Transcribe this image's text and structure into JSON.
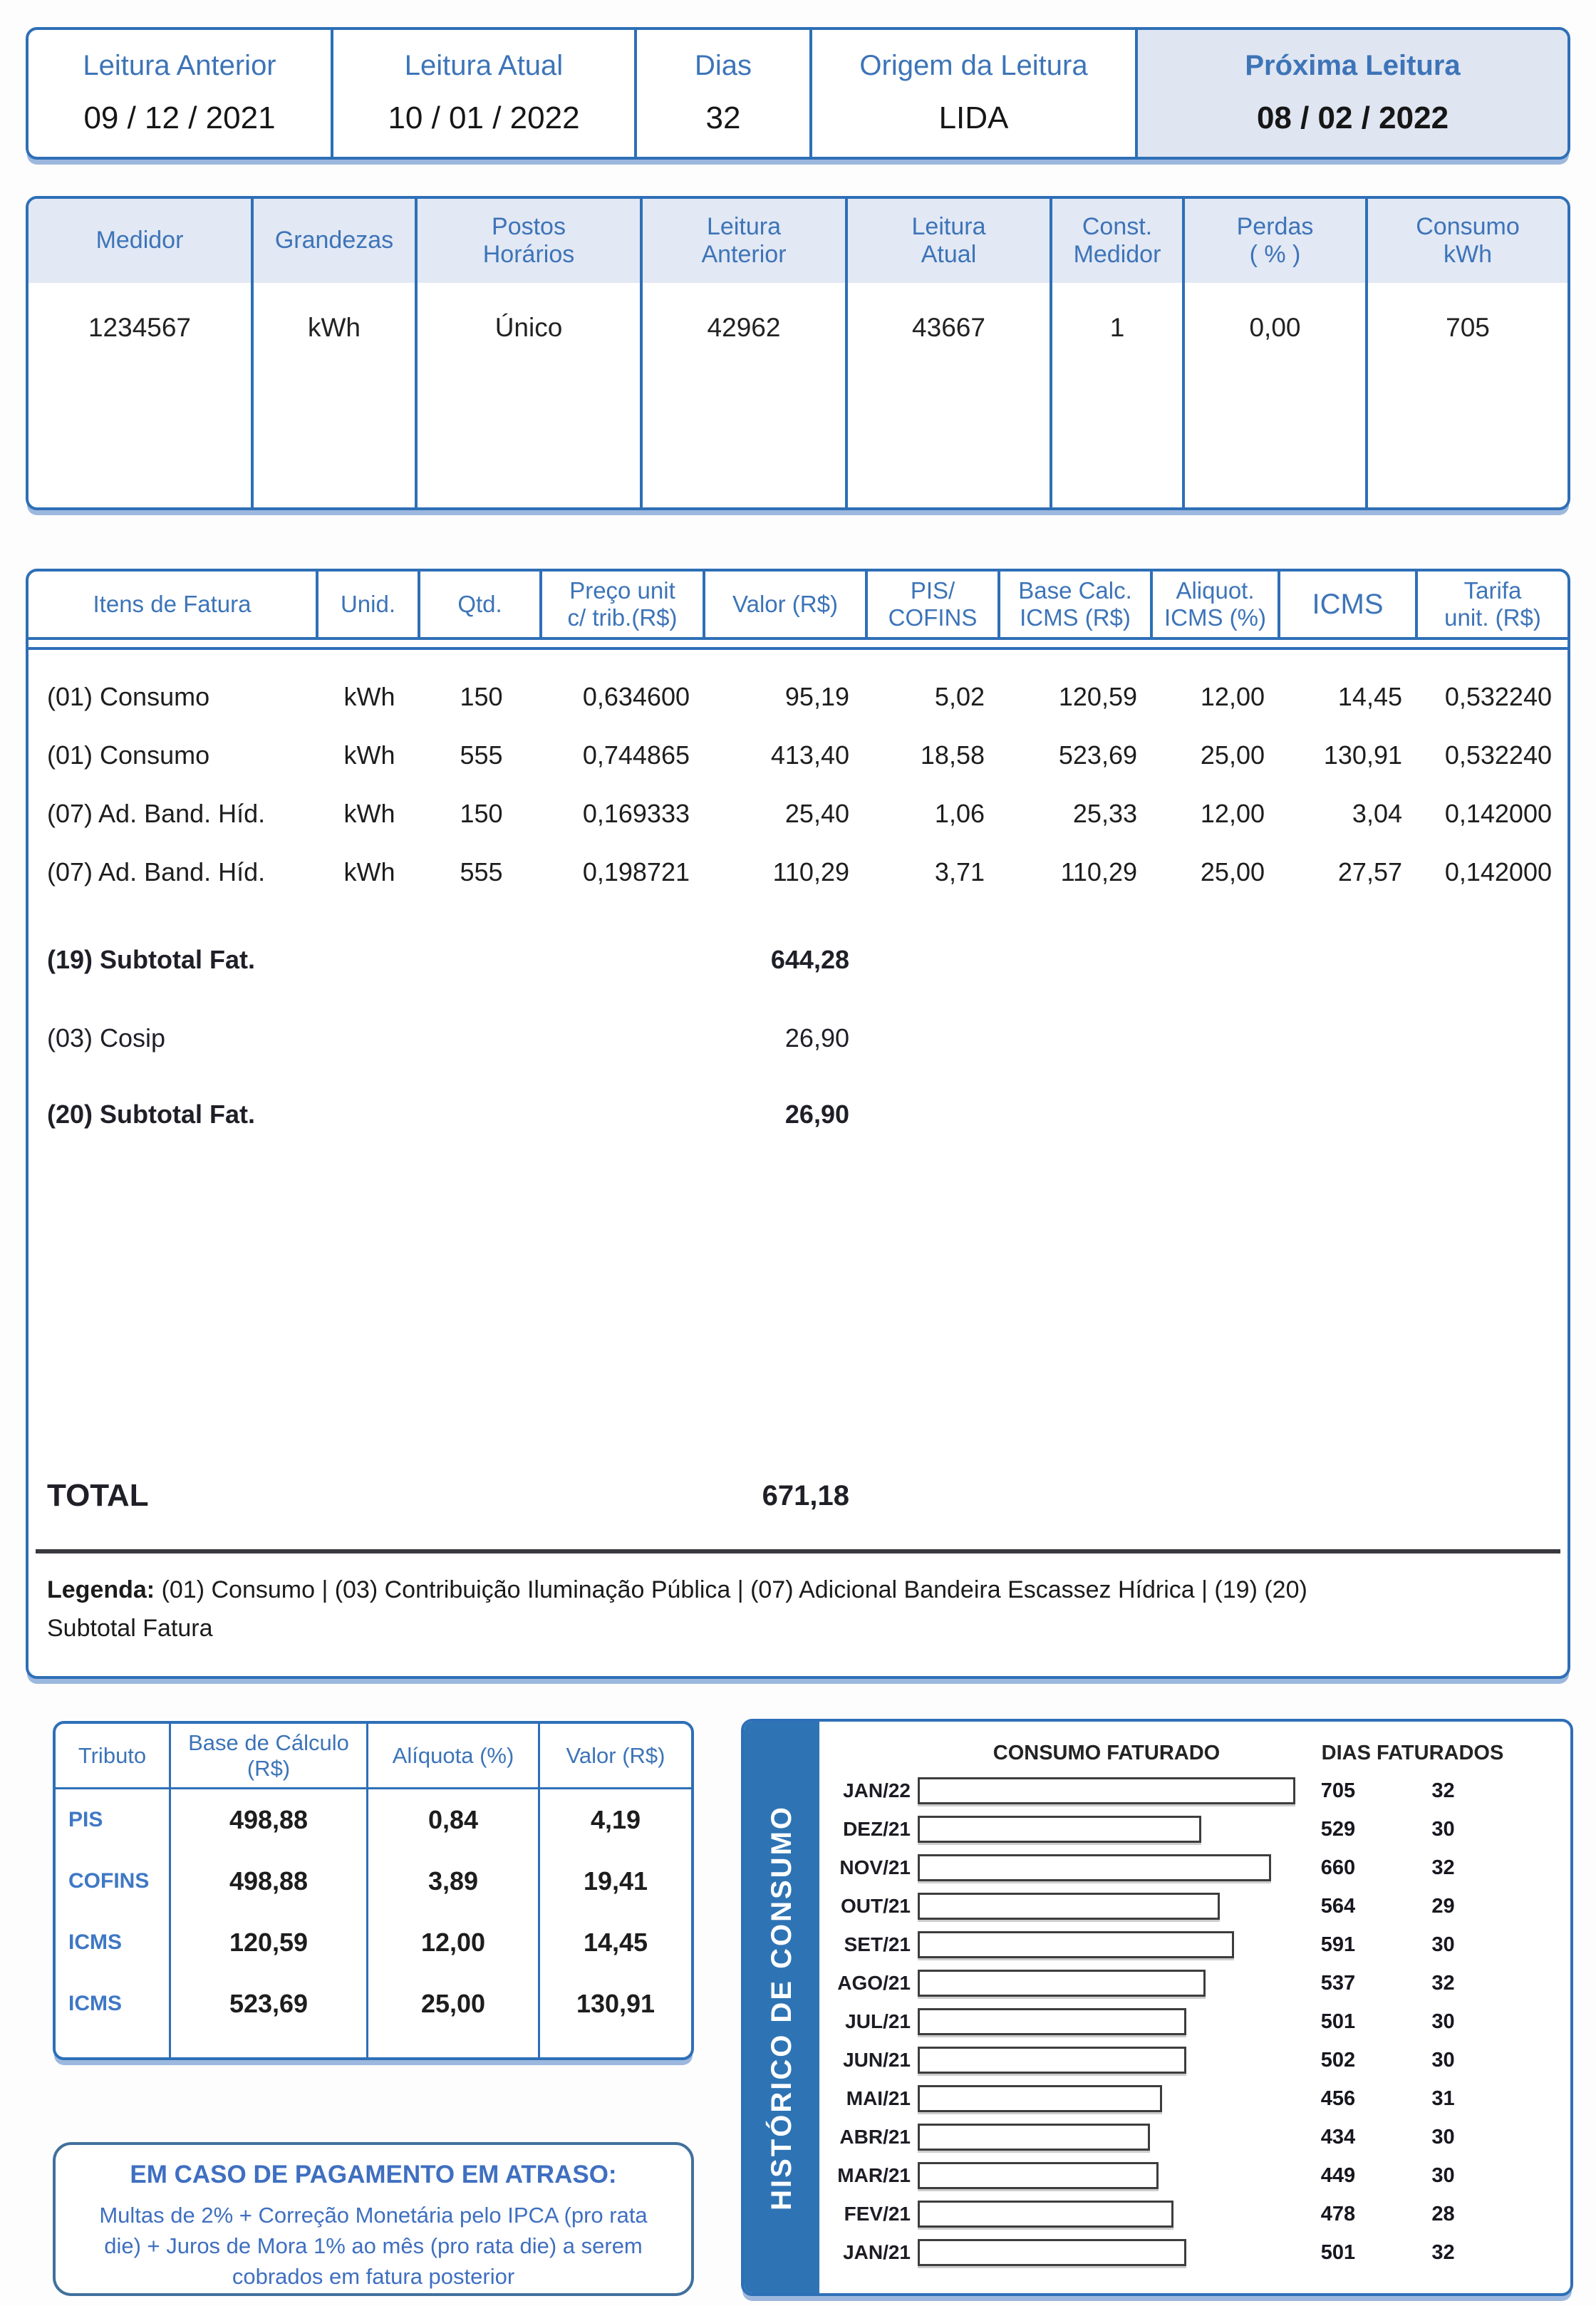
{
  "reading_summary": {
    "cells": [
      {
        "label": "Leitura Anterior",
        "value": "09 / 12 / 2021"
      },
      {
        "label": "Leitura Atual",
        "value": "10 / 01 / 2022"
      },
      {
        "label": "Dias",
        "value": "32"
      },
      {
        "label": "Origem da Leitura",
        "value": "LIDA"
      },
      {
        "label": "Próxima Leitura",
        "value": "08 / 02 / 2022"
      }
    ]
  },
  "meter_table": {
    "headers": [
      "Medidor",
      "Grandezas",
      "Postos\nHorários",
      "Leitura\nAnterior",
      "Leitura\nAtual",
      "Const.\nMedidor",
      "Perdas\n( % )",
      "Consumo\nkWh"
    ],
    "values": [
      "1234567",
      "kWh",
      "Único",
      "42962",
      "43667",
      "1",
      "0,00",
      "705"
    ]
  },
  "items_table": {
    "headers": [
      "Itens de Fatura",
      "Unid.",
      "Qtd.",
      "Preço unit\nc/ trib.(R$)",
      "Valor (R$)",
      "PIS/\nCOFINS",
      "Base Calc.\nICMS (R$)",
      "Aliquot.\nICMS (%)",
      "ICMS",
      "Tarifa\nunit. (R$)"
    ],
    "rows": [
      [
        "(01) Consumo",
        "kWh",
        "150",
        "0,634600",
        "95,19",
        "5,02",
        "120,59",
        "12,00",
        "14,45",
        "0,532240"
      ],
      [
        "(01) Consumo",
        "kWh",
        "555",
        "0,744865",
        "413,40",
        "18,58",
        "523,69",
        "25,00",
        "130,91",
        "0,532240"
      ],
      [
        "(07) Ad. Band. Híd.",
        "kWh",
        "150",
        "0,169333",
        "25,40",
        "1,06",
        "25,33",
        "12,00",
        "3,04",
        "0,142000"
      ],
      [
        "(07) Ad. Band. Híd.",
        "kWh",
        "555",
        "0,198721",
        "110,29",
        "3,71",
        "110,29",
        "25,00",
        "27,57",
        "0,142000"
      ]
    ],
    "summary_rows": [
      {
        "label": "(19) Subtotal Fat.",
        "value": "644,28"
      },
      {
        "label": "(03) Cosip",
        "value": "26,90"
      },
      {
        "label": "(20) Subtotal Fat.",
        "value": "26,90"
      }
    ],
    "total": {
      "label": "TOTAL",
      "value": "671,18"
    },
    "legend": {
      "prefix": "Legenda:",
      "text": " (01) Consumo | (03) Contribuição Iluminação Pública | (07) Adicional Bandeira Escassez Hídrica | (19) (20) Subtotal Fatura"
    }
  },
  "tax_table": {
    "headers": [
      "Tributo",
      "Base de Cálculo (R$)",
      "Alíquota (%)",
      "Valor (R$)"
    ],
    "rows": [
      {
        "name": "PIS",
        "base": "498,88",
        "rate": "0,84",
        "value": "4,19"
      },
      {
        "name": "COFINS",
        "base": "498,88",
        "rate": "3,89",
        "value": "19,41"
      },
      {
        "name": "ICMS",
        "base": "120,59",
        "rate": "12,00",
        "value": "14,45"
      },
      {
        "name": "ICMS",
        "base": "523,69",
        "rate": "25,00",
        "value": "130,91"
      }
    ]
  },
  "late_payment": {
    "title": "EM CASO DE PAGAMENTO EM ATRASO:",
    "body": "Multas de 2% + Correção Monetária pelo IPCA (pro rata die) + Juros de Mora 1% ao mês (pro rata die) a serem cobrados em fatura posterior"
  },
  "chart_data": {
    "type": "bar",
    "orientation": "horizontal",
    "sidebar_title": "HISTÓRICO DE CONSUMO",
    "col_title_consumption": "CONSUMO FATURADO",
    "col_title_days": "DIAS FATURADOS",
    "categories": [
      "JAN/22",
      "DEZ/21",
      "NOV/21",
      "OUT/21",
      "SET/21",
      "AGO/21",
      "JUL/21",
      "JUN/21",
      "MAI/21",
      "ABR/21",
      "MAR/21",
      "FEV/21",
      "JAN/21"
    ],
    "series": [
      {
        "name": "CONSUMO FATURADO",
        "values": [
          705,
          529,
          660,
          564,
          591,
          537,
          501,
          502,
          456,
          434,
          449,
          478,
          501
        ]
      },
      {
        "name": "DIAS FATURADOS",
        "values": [
          32,
          30,
          32,
          29,
          30,
          32,
          30,
          30,
          31,
          30,
          30,
          28,
          32
        ]
      }
    ],
    "xlim": [
      0,
      705
    ],
    "grid": false,
    "legend_position": "none",
    "bar_fill": "#ffffff",
    "bar_border": "#3d3d3d"
  },
  "colors": {
    "border_blue": "#2e6fb7",
    "header_text_blue": "#3d74b8",
    "light_blue_bg": "#e2e8f4",
    "highlight_bg": "#dfe5f1",
    "sidebar_blue": "#2e74b5",
    "late_box_border": "#41719c",
    "dark_divider": "#39393f",
    "text_dark": "#1f1f28"
  }
}
